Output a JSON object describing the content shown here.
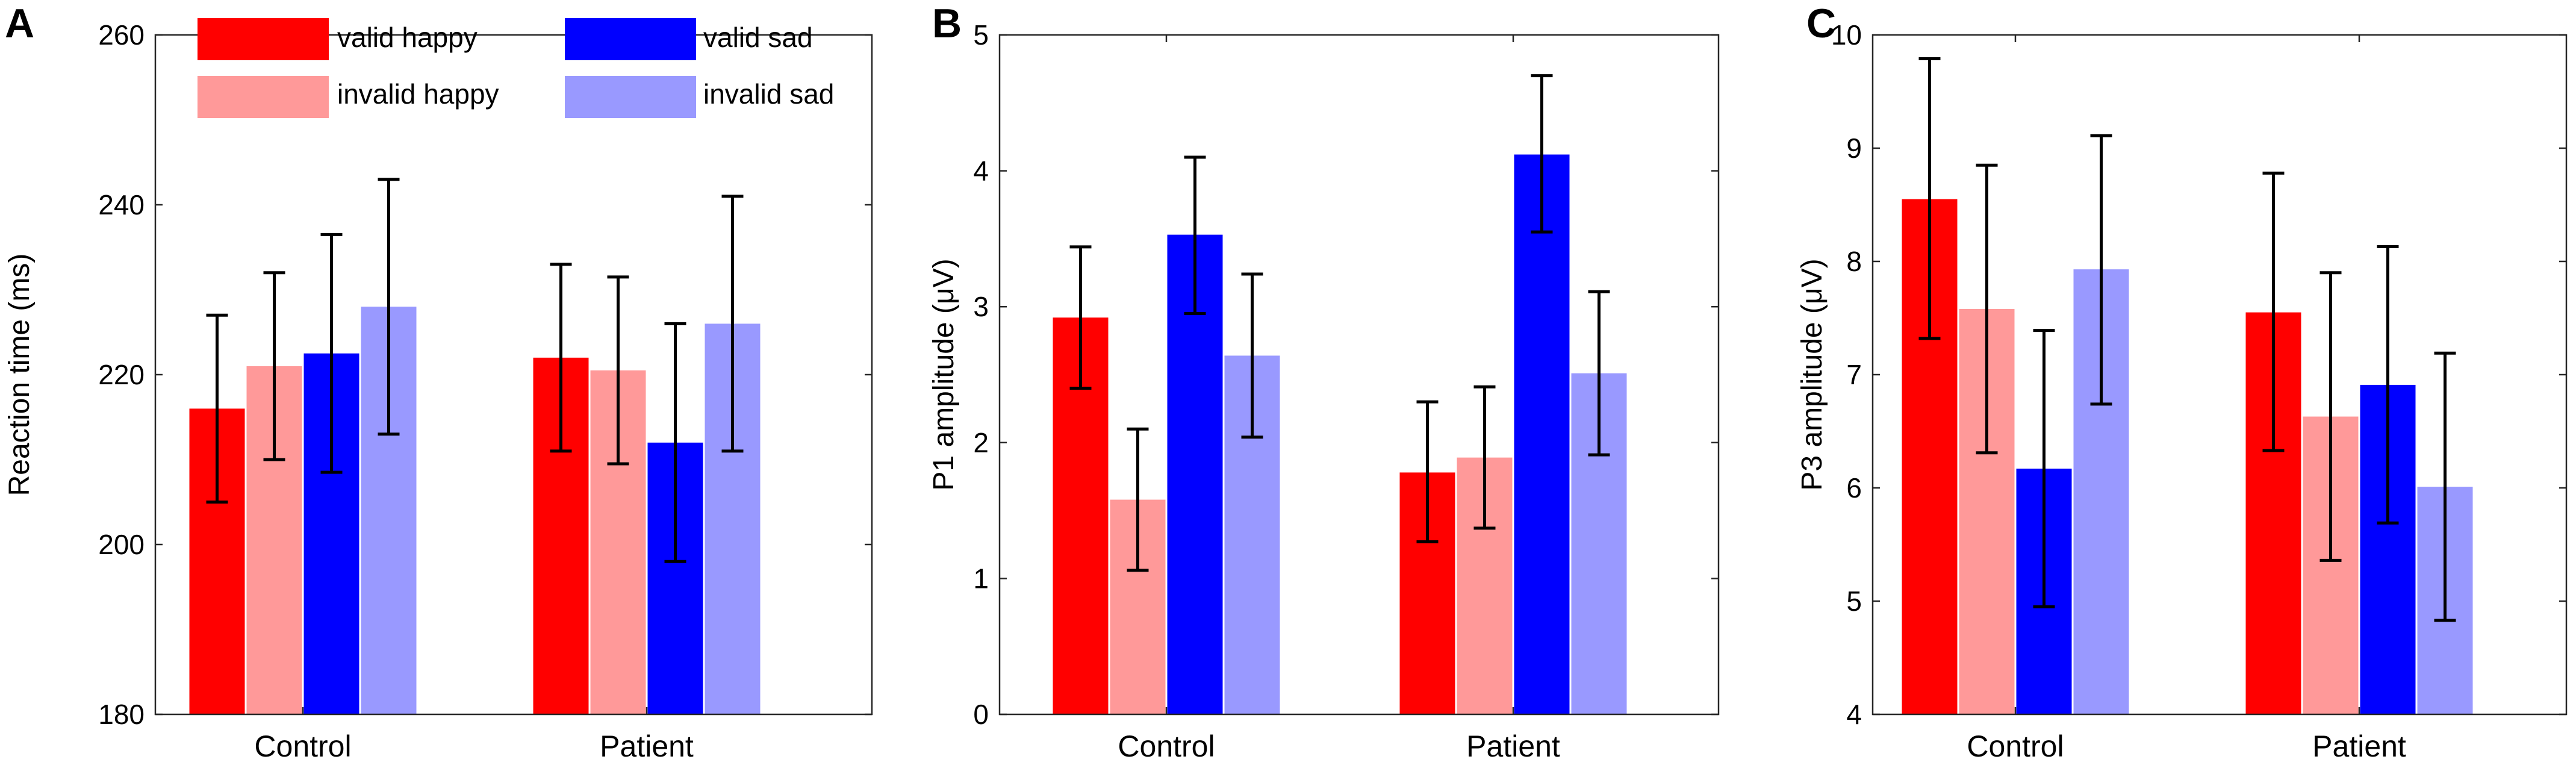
{
  "figure": {
    "legend": [
      {
        "label": "valid happy",
        "color": "#ff0000"
      },
      {
        "label": "valid sad",
        "color": "#0000ff"
      },
      {
        "label": "invalid happy",
        "color": "#ff9999"
      },
      {
        "label": "invalid sad",
        "color": "#9999ff"
      }
    ]
  },
  "chart_data": [
    {
      "panel": "A",
      "type": "bar",
      "ylabel": "Reaction time (ms)",
      "ylim": [
        180,
        260
      ],
      "yticks": [
        180,
        200,
        220,
        240,
        260
      ],
      "categories": [
        "Control",
        "Patient"
      ],
      "series": [
        {
          "name": "valid happy",
          "color": "#ff0000",
          "values": [
            216,
            222
          ],
          "err_low": [
            205,
            211
          ],
          "err_high": [
            227,
            233
          ]
        },
        {
          "name": "invalid happy",
          "color": "#ff9999",
          "values": [
            221,
            220.5
          ],
          "err_low": [
            210,
            209.5
          ],
          "err_high": [
            232,
            231.5
          ]
        },
        {
          "name": "valid sad",
          "color": "#0000ff",
          "values": [
            222.5,
            212
          ],
          "err_low": [
            208.5,
            198
          ],
          "err_high": [
            236.5,
            226
          ]
        },
        {
          "name": "invalid sad",
          "color": "#9999ff",
          "values": [
            228,
            226
          ],
          "err_low": [
            213,
            211
          ],
          "err_high": [
            243,
            241
          ]
        }
      ]
    },
    {
      "panel": "B",
      "type": "bar",
      "ylabel": "P1 amplitude (μV)",
      "ylim": [
        0,
        5
      ],
      "yticks": [
        0,
        1,
        2,
        3,
        4,
        5
      ],
      "categories": [
        "Control",
        "Patient"
      ],
      "series": [
        {
          "name": "valid happy",
          "color": "#ff0000",
          "values": [
            2.92,
            1.78
          ],
          "err_low": [
            2.4,
            1.27
          ],
          "err_high": [
            3.44,
            2.3
          ]
        },
        {
          "name": "invalid happy",
          "color": "#ff9999",
          "values": [
            1.58,
            1.89
          ],
          "err_low": [
            1.06,
            1.37
          ],
          "err_high": [
            2.1,
            2.41
          ]
        },
        {
          "name": "valid sad",
          "color": "#0000ff",
          "values": [
            3.53,
            4.12
          ],
          "err_low": [
            2.95,
            3.55
          ],
          "err_high": [
            4.1,
            4.7
          ]
        },
        {
          "name": "invalid sad",
          "color": "#9999ff",
          "values": [
            2.64,
            2.51
          ],
          "err_low": [
            2.04,
            1.91
          ],
          "err_high": [
            3.24,
            3.11
          ]
        }
      ]
    },
    {
      "panel": "C",
      "type": "bar",
      "ylabel": "P3 amplitude (μV)",
      "ylim": [
        4,
        10
      ],
      "yticks": [
        4,
        5,
        6,
        7,
        8,
        9,
        10
      ],
      "categories": [
        "Control",
        "Patient"
      ],
      "series": [
        {
          "name": "valid happy",
          "color": "#ff0000",
          "values": [
            8.55,
            7.55
          ],
          "err_low": [
            7.32,
            6.33
          ],
          "err_high": [
            9.79,
            8.78
          ]
        },
        {
          "name": "invalid happy",
          "color": "#ff9999",
          "values": [
            7.58,
            6.63
          ],
          "err_low": [
            6.31,
            5.36
          ],
          "err_high": [
            8.85,
            7.9
          ]
        },
        {
          "name": "valid sad",
          "color": "#0000ff",
          "values": [
            6.17,
            6.91
          ],
          "err_low": [
            4.95,
            5.69
          ],
          "err_high": [
            7.39,
            8.13
          ]
        },
        {
          "name": "invalid sad",
          "color": "#9999ff",
          "values": [
            7.93,
            6.01
          ],
          "err_low": [
            6.74,
            4.83
          ],
          "err_high": [
            9.11,
            7.19
          ]
        }
      ]
    }
  ]
}
